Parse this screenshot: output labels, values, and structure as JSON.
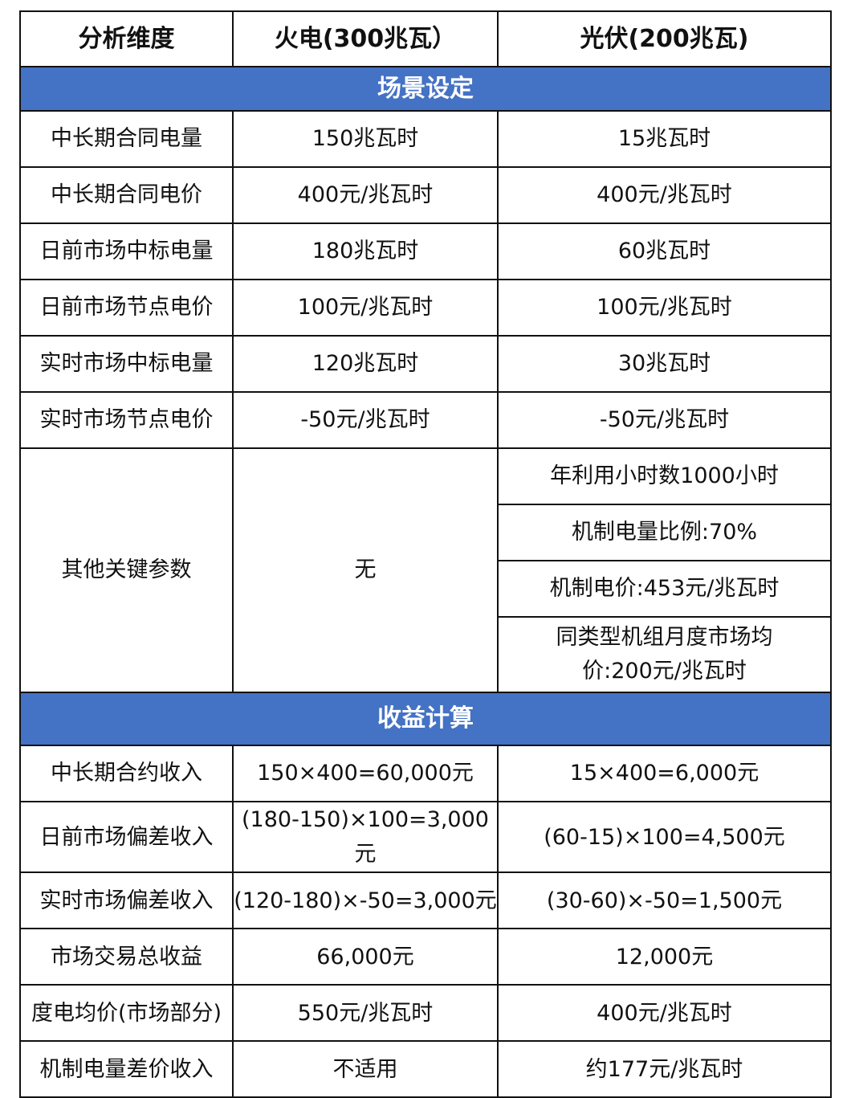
{
  "header": [
    "分析维度",
    "火电(300兆瓦）",
    "光伏(200兆瓦)"
  ],
  "section_colors": {
    "section_bg": "#4472C4",
    "section_text": "#FFFFFF"
  },
  "scenario": {
    "title": "场景设定",
    "rows": [
      [
        "中长期合同电量",
        "150兆瓦时",
        "15兆瓦时"
      ],
      [
        "中长期合同电价",
        "400元/兆瓦时",
        "400元/兆瓦时"
      ],
      [
        "日前市场中标电量",
        "180兆瓦时",
        "60兆瓦时"
      ],
      [
        "日前市场节点电价",
        "100元/兆瓦时",
        "100元/兆瓦时"
      ],
      [
        "实时市场中标电量",
        "120兆瓦时",
        "30兆瓦时"
      ],
      [
        "实时市场节点电价",
        "-50元/兆瓦时",
        "-50元/兆瓦时"
      ]
    ],
    "other": {
      "label": "其他关键参数",
      "thermal": "无",
      "solar": [
        "年利用小时数1000小时",
        "机制电量比例:70%",
        "机制电价:453元/兆瓦时",
        "同类型机组月度市场均价:200元/兆瓦时"
      ]
    }
  },
  "revenue": {
    "title": "收益计算",
    "rows": [
      [
        "中长期合约收入",
        "150×400=60,000元",
        "15×400=6,000元"
      ],
      [
        "日前市场偏差收入",
        "(180-150)×100=3,000元",
        "(60-15)×100=4,500元"
      ],
      [
        "实时市场偏差收入",
        "(120-180)×-50=3,000元",
        "(30-60)×-50=1,500元"
      ],
      [
        "市场交易总收益",
        "66,000元",
        "12,000元"
      ],
      [
        "度电均价(市场部分)",
        "550元/兆瓦时",
        "400元/兆瓦时"
      ],
      [
        "机制电量差价收入",
        "不适用",
        "约177元/兆瓦时"
      ]
    ]
  }
}
